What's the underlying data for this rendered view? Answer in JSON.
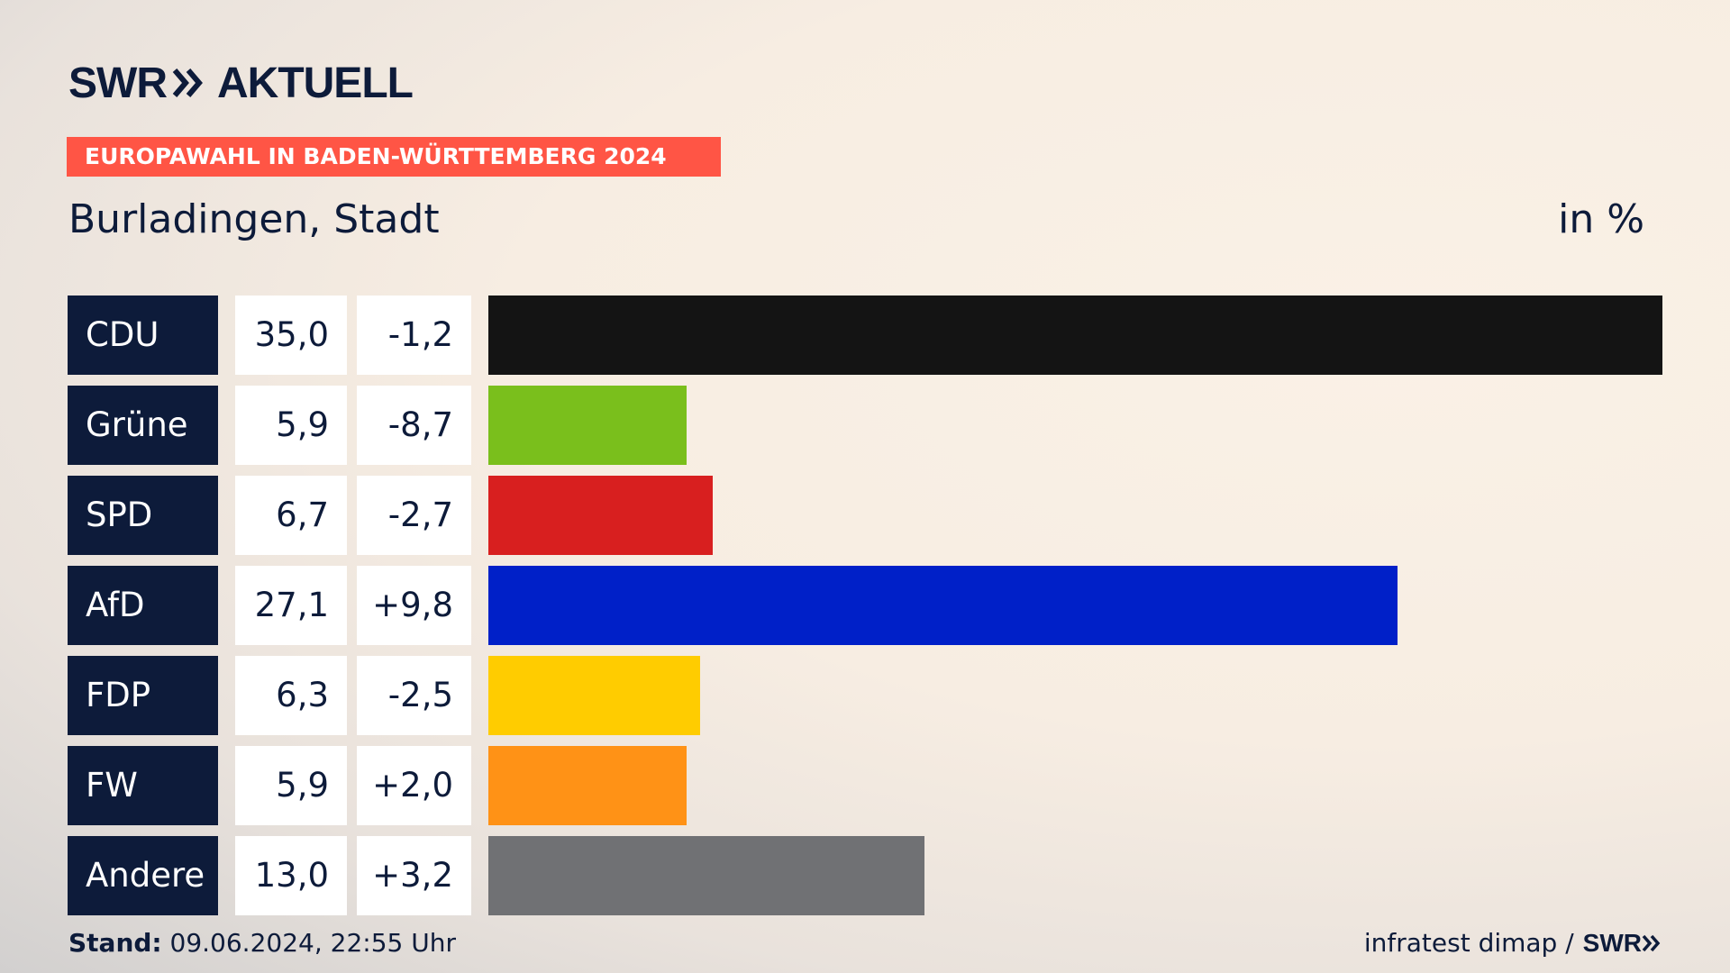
{
  "header": {
    "logo_left": "SWR",
    "logo_right": "AKTUELL",
    "banner": "EUROPAWAHL IN BADEN-WÜRTTEMBERG 2024",
    "subtitle": "Burladingen, Stadt",
    "unit": "in %"
  },
  "chart_data": {
    "type": "bar",
    "orientation": "horizontal",
    "categories": [
      "CDU",
      "Grüne",
      "SPD",
      "AfD",
      "FDP",
      "FW",
      "Andere"
    ],
    "values": [
      35.0,
      5.9,
      6.7,
      27.1,
      6.3,
      5.9,
      13.0
    ],
    "value_labels": [
      "35,0",
      "5,9",
      "6,7",
      "27,1",
      "6,3",
      "5,9",
      "13,0"
    ],
    "change_labels": [
      "-1,2",
      "-8,7",
      "-2,7",
      "+9,8",
      "-2,5",
      "+2,0",
      "+3,2"
    ],
    "colors": [
      "#141414",
      "#7abf1c",
      "#d81f1f",
      "#0020c8",
      "#ffcc00",
      "#ff9216",
      "#707174"
    ],
    "xlim": [
      0,
      35.0
    ],
    "title": "Burladingen, Stadt",
    "unit": "in %"
  },
  "footer": {
    "stand_label": "Stand:",
    "stand_value": " 09.06.2024, 22:55 Uhr",
    "source": "infratest dimap /",
    "source_brand": "SWR"
  },
  "colors": {
    "navy": "#0d1b3a",
    "banner": "#ff5545"
  }
}
